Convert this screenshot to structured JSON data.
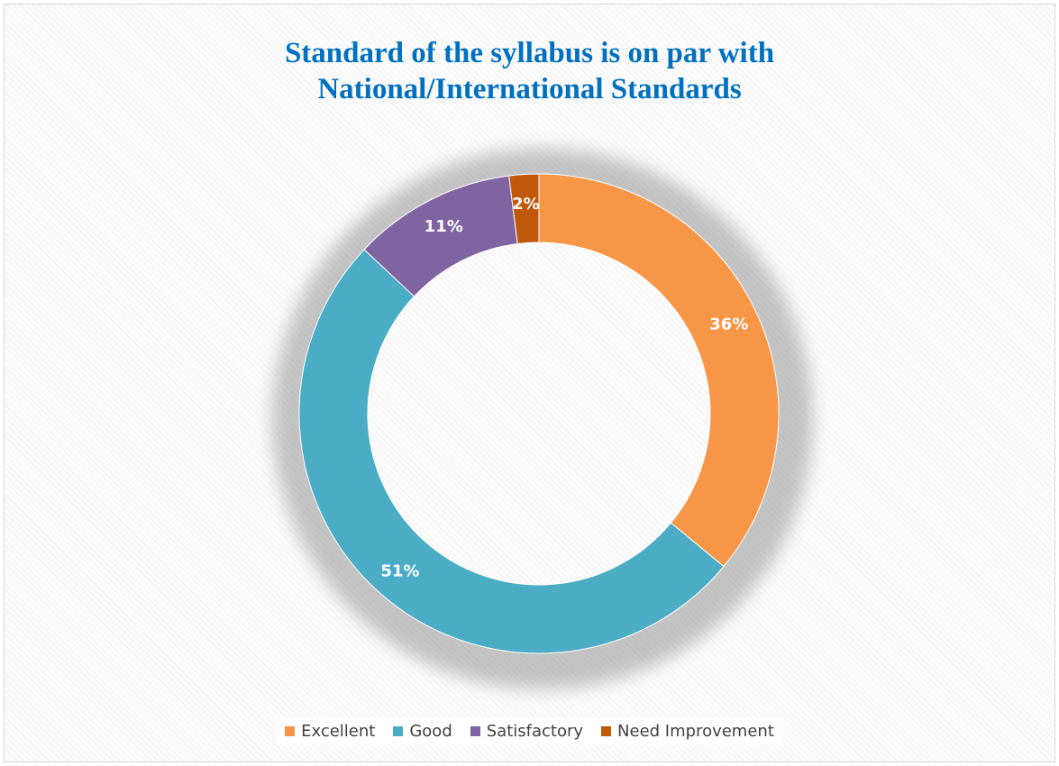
{
  "chart_data": {
    "type": "pie",
    "variant": "donut",
    "title": "Standard of the syllabus is on par with National/International Standards",
    "title_lines": [
      "Standard of the syllabus is on par with",
      "National/International Standards"
    ],
    "categories": [
      "Excellent",
      "Good",
      "Satisfactory",
      "Need Improvement"
    ],
    "values": [
      36,
      51,
      11,
      2
    ],
    "value_labels": [
      "36%",
      "51%",
      "11%",
      "2%"
    ],
    "colors": [
      "#f79646",
      "#4bacc6",
      "#8064a2",
      "#c0580a"
    ],
    "legend_position": "bottom",
    "grid": false
  }
}
